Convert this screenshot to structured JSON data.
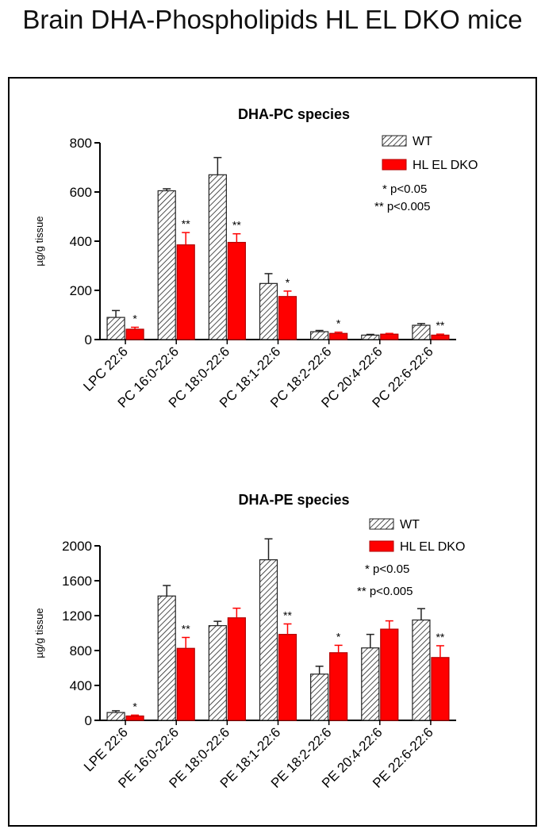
{
  "page_title": "Brain DHA-Phospholipids HL EL DKO mice",
  "colors": {
    "wt": "#ffffff",
    "dko": "#ff0000",
    "axis": "#000000"
  },
  "chart_data": [
    {
      "type": "bar",
      "title": "DHA-PC species",
      "ylabel": "µg/g tissue",
      "xlabel": "",
      "ylim": [
        0,
        800
      ],
      "yticks": [
        0,
        200,
        400,
        600,
        800
      ],
      "categories": [
        "LPC 22:6",
        "PC 16:0-22:6",
        "PC 18:0-22:6",
        "PC 18:1-22:6",
        "PC 18:2-22:6",
        "PC 20:4-22:6",
        "PC 22:6-22:6"
      ],
      "series": [
        {
          "name": "WT",
          "pattern": "hatched",
          "values": [
            90,
            605,
            670,
            228,
            32,
            18,
            58
          ],
          "errors": [
            28,
            8,
            70,
            40,
            5,
            3,
            7
          ]
        },
        {
          "name": "HL EL DKO",
          "pattern": "red",
          "values": [
            42,
            385,
            395,
            175,
            25,
            22,
            18
          ],
          "errors": [
            8,
            50,
            35,
            22,
            5,
            3,
            4
          ]
        }
      ],
      "significance": [
        "*",
        "**",
        "**",
        "*",
        "*",
        "",
        "**"
      ],
      "legend": [
        "WT",
        "HL EL DKO"
      ],
      "notes": [
        "* p<0.05",
        "** p<0.005"
      ]
    },
    {
      "type": "bar",
      "title": "DHA-PE species",
      "ylabel": "µg/g tissue",
      "xlabel": "",
      "ylim": [
        0,
        2100
      ],
      "yticks": [
        0,
        400,
        800,
        1200,
        1600,
        2000
      ],
      "categories": [
        "LPE 22:6",
        "PE 16:0-22:6",
        "PE 18:0-22:6",
        "PE 18:1-22:6",
        "PE 18:2-22:6",
        "PE 20:4-22:6",
        "PE 22:6-22:6"
      ],
      "series": [
        {
          "name": "WT",
          "pattern": "hatched",
          "values": [
            90,
            1425,
            1085,
            1840,
            530,
            830,
            1150
          ],
          "errors": [
            20,
            120,
            50,
            240,
            90,
            155,
            130
          ]
        },
        {
          "name": "HL EL DKO",
          "pattern": "red",
          "values": [
            50,
            825,
            1175,
            985,
            775,
            1045,
            720
          ],
          "errors": [
            10,
            125,
            110,
            120,
            85,
            95,
            135
          ]
        }
      ],
      "significance": [
        "*",
        "**",
        "",
        "**",
        "*",
        "",
        "**"
      ],
      "legend": [
        "WT",
        "HL EL DKO"
      ],
      "notes": [
        "* p<0.05",
        "** p<0.005"
      ]
    }
  ]
}
